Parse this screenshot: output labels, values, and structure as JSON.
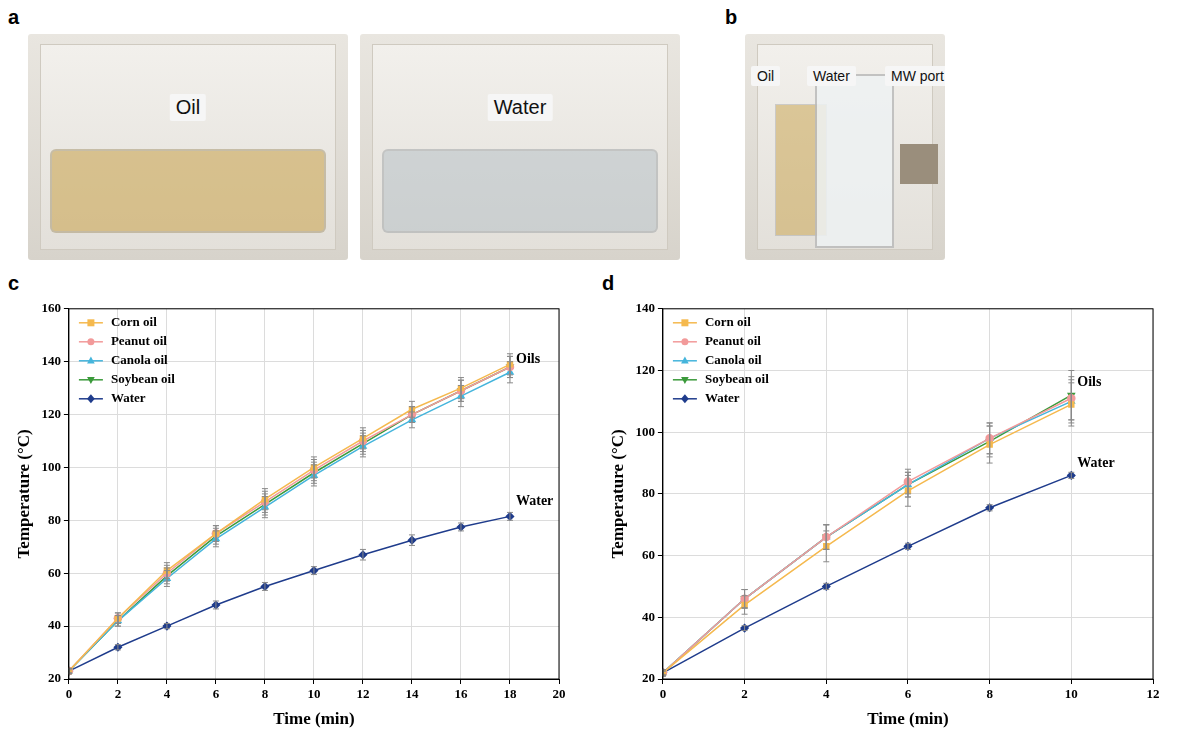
{
  "photo_panels": [
    {
      "letter": "a",
      "photos": [
        [
          "Oil"
        ],
        [
          "Water"
        ]
      ]
    },
    {
      "letter": "b",
      "photos": [
        [
          "Oil",
          "Water",
          "MW port"
        ]
      ]
    }
  ],
  "chart_data": [
    {
      "letter": "c",
      "type": "line",
      "x_label": "Time (min)",
      "y_label": "Temperature (°C)",
      "x": [
        0,
        2,
        4,
        6,
        8,
        10,
        12,
        14,
        16,
        18
      ],
      "xlim": [
        0,
        20
      ],
      "xticks": [
        0,
        2,
        4,
        6,
        8,
        10,
        12,
        14,
        16,
        18,
        20
      ],
      "ylim": [
        20,
        160
      ],
      "yticks": [
        20,
        40,
        60,
        80,
        100,
        120,
        140,
        160
      ],
      "grid": true,
      "legend": "upper left",
      "series": [
        {
          "name": "Corn oil",
          "color": "#f5b94e",
          "marker": "square",
          "values": [
            23,
            43,
            61,
            75,
            88,
            100,
            111,
            122,
            130,
            139
          ],
          "errors": [
            1,
            2,
            3,
            3,
            4,
            4,
            4,
            3,
            4,
            4
          ]
        },
        {
          "name": "Peanut oil",
          "color": "#f29a9a",
          "marker": "circle",
          "values": [
            23,
            43,
            60,
            75,
            87,
            99,
            110,
            120,
            129,
            138
          ],
          "errors": [
            1,
            2,
            3,
            3,
            4,
            4,
            4,
            3,
            4,
            4
          ]
        },
        {
          "name": "Canola oil",
          "color": "#45b5dc",
          "marker": "triangle",
          "values": [
            23,
            42,
            58,
            73,
            85,
            97,
            108,
            118,
            127,
            136
          ],
          "errors": [
            1,
            2,
            3,
            3,
            4,
            4,
            4,
            3,
            4,
            4
          ]
        },
        {
          "name": "Soybean oil",
          "color": "#3b9a3b",
          "marker": "triangle_down",
          "values": [
            23,
            42,
            59,
            74,
            86,
            98,
            109,
            120,
            129,
            138
          ],
          "errors": [
            1,
            2,
            3,
            3,
            4,
            4,
            4,
            3,
            4,
            4
          ]
        },
        {
          "name": "Water",
          "color": "#1f3c8c",
          "marker": "diamond",
          "values": [
            23,
            32,
            40,
            48,
            55,
            61,
            67,
            72.5,
            77.5,
            81.5
          ],
          "errors": [
            0.5,
            1,
            1,
            1.5,
            1.5,
            1.5,
            2,
            2,
            1.5,
            1.5
          ]
        }
      ],
      "annotations": [
        {
          "text": "Oils",
          "x": 18,
          "y": 141
        },
        {
          "text": "Water",
          "x": 18,
          "y": 87
        }
      ]
    },
    {
      "letter": "d",
      "type": "line",
      "x_label": "Time (min)",
      "y_label": "Temperature (°C)",
      "x": [
        0,
        2,
        4,
        6,
        8,
        10
      ],
      "xlim": [
        0,
        12
      ],
      "xticks": [
        0,
        2,
        4,
        6,
        8,
        10,
        12
      ],
      "ylim": [
        20,
        140
      ],
      "yticks": [
        20,
        40,
        60,
        80,
        100,
        120,
        140
      ],
      "grid": true,
      "legend": "upper left",
      "series": [
        {
          "name": "Corn oil",
          "color": "#f5b94e",
          "marker": "square",
          "values": [
            22,
            44,
            63,
            81,
            96,
            109
          ],
          "errors": [
            1,
            3,
            5,
            5,
            6,
            7
          ]
        },
        {
          "name": "Peanut oil",
          "color": "#f29a9a",
          "marker": "circle",
          "values": [
            22,
            46,
            66,
            84,
            98,
            111
          ],
          "errors": [
            1,
            3,
            4,
            4,
            5,
            7
          ]
        },
        {
          "name": "Canola oil",
          "color": "#45b5dc",
          "marker": "triangle",
          "values": [
            22,
            46,
            66,
            83,
            98,
            110
          ],
          "errors": [
            1,
            3,
            4,
            4,
            5,
            7
          ]
        },
        {
          "name": "Soybean oil",
          "color": "#3b9a3b",
          "marker": "triangle_down",
          "values": [
            22,
            46,
            66,
            83,
            97,
            112
          ],
          "errors": [
            1,
            3,
            4,
            4,
            5,
            8
          ]
        },
        {
          "name": "Water",
          "color": "#1f3c8c",
          "marker": "diamond",
          "values": [
            22,
            36.5,
            50,
            63,
            75.5,
            86
          ],
          "errors": [
            0.5,
            0.8,
            1,
            1,
            1,
            1
          ]
        }
      ],
      "annotations": [
        {
          "text": "Oils",
          "x": 10,
          "y": 116
        },
        {
          "text": "Water",
          "x": 10,
          "y": 90
        }
      ]
    }
  ]
}
